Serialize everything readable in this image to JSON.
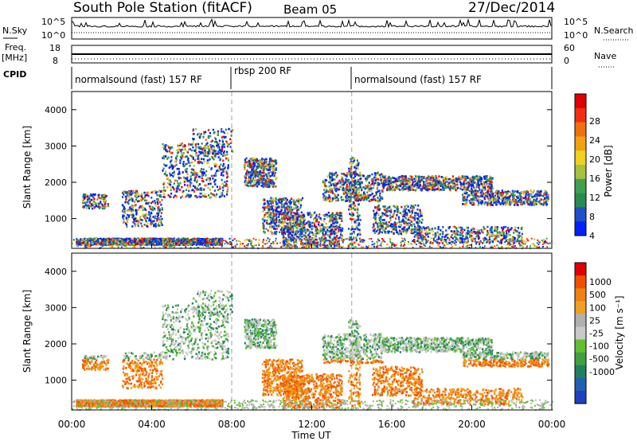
{
  "header": {
    "station": "South Pole Station (fitACF)",
    "beam": "Beam 05",
    "date": "27/Dec/2014"
  },
  "strips": {
    "nsky_label": "N.Sky",
    "nsky_ticks": [
      "10^5",
      "10^0"
    ],
    "nsearch_label": "N.Search",
    "nsearch_ticks": [
      "10^5",
      "10^0"
    ],
    "freq_label": "Freq.",
    "freq_unit": "[MHz]",
    "freq_ticks": [
      "18",
      "8"
    ],
    "nave_label": "Nave",
    "nave_ticks": [
      "60",
      "0"
    ],
    "cpid_label": "CPID"
  },
  "cpid_segments": [
    {
      "label": "normalsound (fast) 157 RF",
      "start": "00:00",
      "end": "08:00"
    },
    {
      "label": "rbsp 200 RF",
      "start": "08:00",
      "end": "14:00"
    },
    {
      "label": "normalsound (fast) 157 RF",
      "start": "14:00",
      "end": "24:00"
    }
  ],
  "chart_data": [
    {
      "type": "heatmap",
      "ylabel": "Slant Range [km]",
      "xlabel": "",
      "y_ticks": [
        1000,
        2000,
        3000,
        4000
      ],
      "ylim": [
        180,
        4500
      ],
      "xlim_hours": [
        0,
        24
      ],
      "colorbar": {
        "label": "Power [dB]",
        "ticks": [
          "28",
          "24",
          "20",
          "16",
          "12",
          "8",
          "4"
        ],
        "colors": [
          "#0020ff",
          "#2050c8",
          "#288c50",
          "#40a050",
          "#a8c040",
          "#f0d020",
          "#f4a010",
          "#f07010",
          "#f03010",
          "#e00000"
        ]
      }
    },
    {
      "type": "heatmap",
      "ylabel": "Slant Range [km]",
      "xlabel": "Time UT",
      "y_ticks": [
        1000,
        2000,
        3000,
        4000
      ],
      "ylim": [
        180,
        4500
      ],
      "xlim_hours": [
        0,
        24
      ],
      "x_ticks": [
        "00:00",
        "04:00",
        "08:00",
        "12:00",
        "16:00",
        "20:00",
        "00:00"
      ],
      "colorbar": {
        "label": "Velocity [m s⁻¹]",
        "ticks": [
          "1000",
          "500",
          "100",
          "25",
          "-25",
          "-100",
          "-500",
          "-1000"
        ],
        "colors": [
          "#2040c0",
          "#2060b0",
          "#208060",
          "#40a040",
          "#60c030",
          "#c8c8c8",
          "#b0b0b0",
          "#f0a020",
          "#f08010",
          "#f05000",
          "#e00000"
        ]
      }
    }
  ],
  "colors": {
    "dashed_marker": "#a0a0a0",
    "ground_scatter": "#a0a0a0"
  }
}
